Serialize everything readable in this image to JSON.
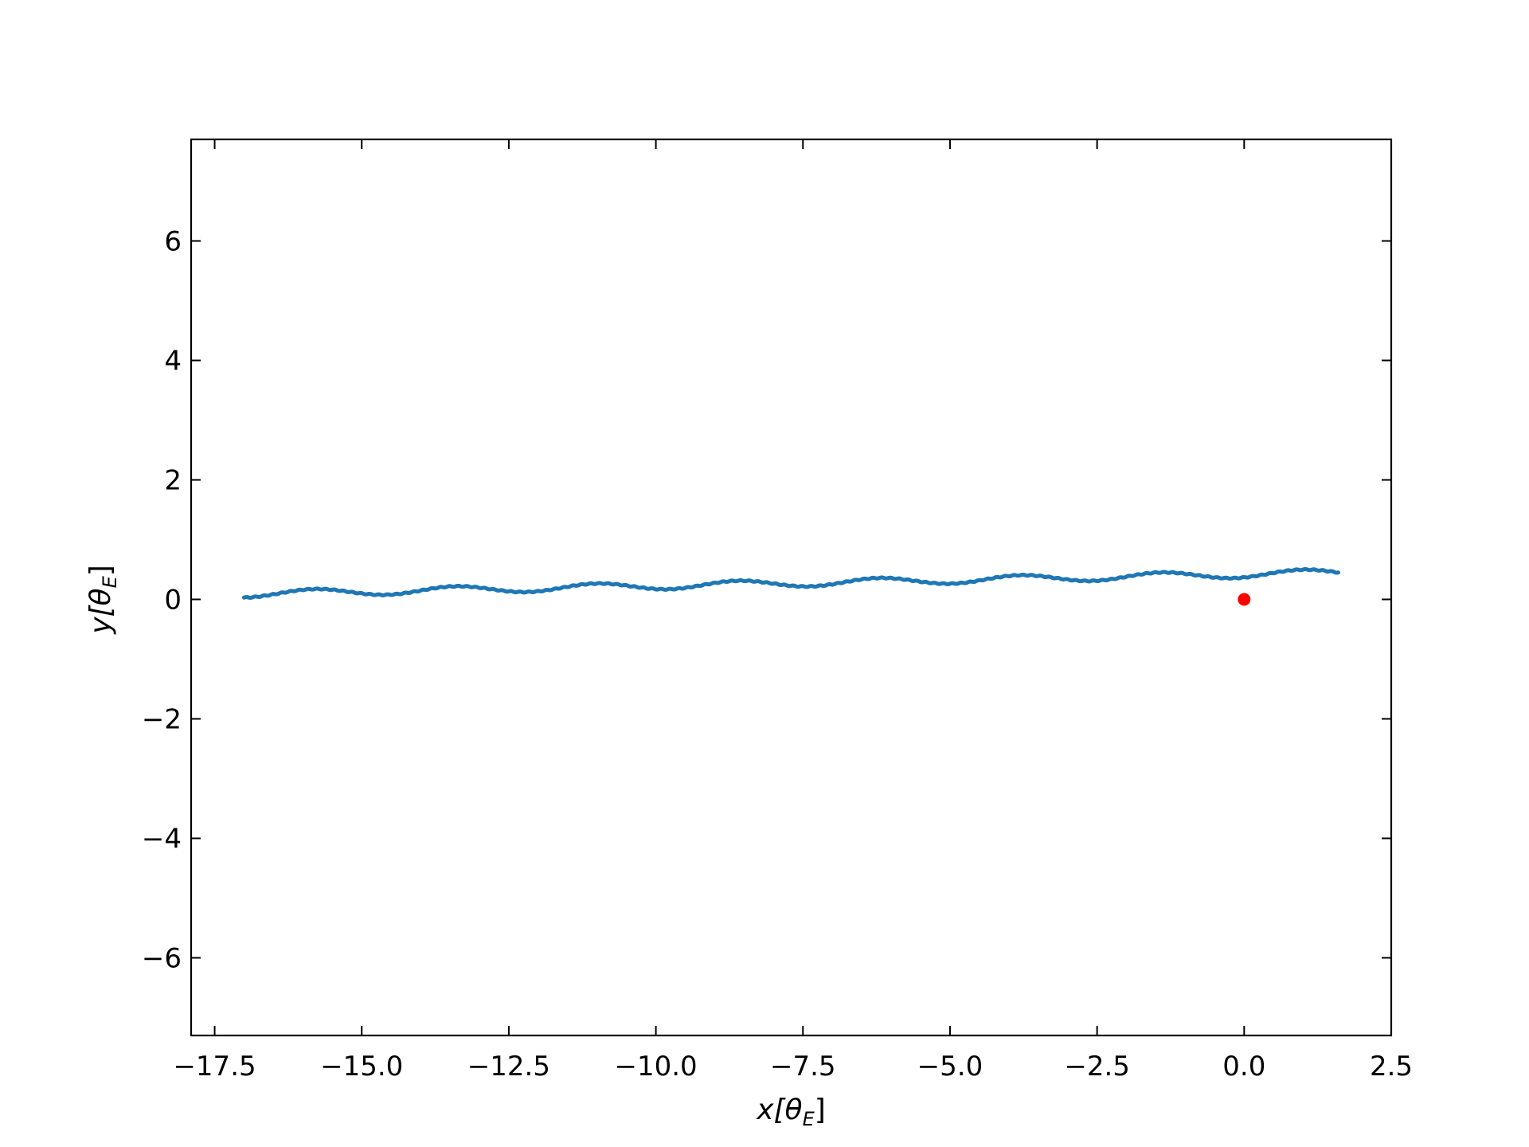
{
  "chart_data": {
    "type": "line",
    "title": "",
    "xlabel_parts": [
      "x[",
      "θ",
      "E",
      "]"
    ],
    "ylabel_parts": [
      "y[",
      "θ",
      "E",
      "]"
    ],
    "xlim": [
      -17.9,
      2.5
    ],
    "ylim": [
      -7.3,
      7.7
    ],
    "x_ticks": [
      -17.5,
      -15.0,
      -12.5,
      -10.0,
      -7.5,
      -5.0,
      -2.5,
      0.0,
      2.5
    ],
    "x_tick_labels": [
      "−17.5",
      "−15.0",
      "−12.5",
      "−10.0",
      "−7.5",
      "−5.0",
      "−2.5",
      "0.0",
      "2.5"
    ],
    "y_ticks": [
      -6,
      -4,
      -2,
      0,
      2,
      4,
      6
    ],
    "y_tick_labels": [
      "−6",
      "−4",
      "−2",
      "0",
      "2",
      "4",
      "6"
    ],
    "grid": false,
    "series": [
      {
        "color": "#1f77b4",
        "x_start": -17.0,
        "x_end": 1.6,
        "trend_start": 0.03,
        "trend_end": 0.39,
        "wave_amplitude": 0.06,
        "wave_period": 2.4,
        "wiggle_amplitude": 0.008,
        "wiggle_period": 0.15
      }
    ],
    "points": [
      {
        "x": 0.0,
        "y": 0.0,
        "color": "#ff0000"
      }
    ]
  },
  "colors": {
    "axes": "#000000",
    "background": "#ffffff"
  }
}
